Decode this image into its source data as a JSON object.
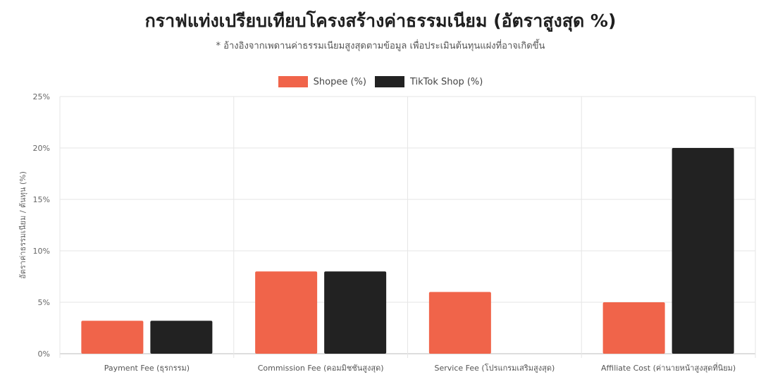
{
  "chart_data": {
    "type": "bar",
    "title": "กราฟแท่งเปรียบเทียบโครงสร้างค่าธรรมเนียม (อัตราสูงสุด %)",
    "subtitle": "* อ้างอิงจากเพดานค่าธรรมเนียมสูงสุดตามข้อมูล เพื่อประเมินต้นทุนแฝงที่อาจเกิดขึ้น",
    "ylabel": "อัตราค่าธรรมเนียม / ต้นทุน (%)",
    "xlabel": "",
    "ylim": [
      0,
      25
    ],
    "yticks": [
      0,
      5,
      10,
      15,
      20,
      25
    ],
    "ytick_suffix": "%",
    "categories": [
      "Payment Fee (ธุรกรรม)",
      "Commission Fee (คอมมิชชันสูงสุด)",
      "Service Fee (โปรแกรมเสริมสูงสุด)",
      "Affiliate Cost (ค่านายหน้าสูงสุดที่นิยม)"
    ],
    "series": [
      {
        "name": "Shopee (%)",
        "color": "#f0644a",
        "values": [
          3.2,
          8,
          6,
          5
        ]
      },
      {
        "name": "TikTok Shop (%)",
        "color": "#222222",
        "values": [
          3.2,
          8,
          0,
          20
        ]
      }
    ],
    "legend_position": "top",
    "grid": true
  }
}
